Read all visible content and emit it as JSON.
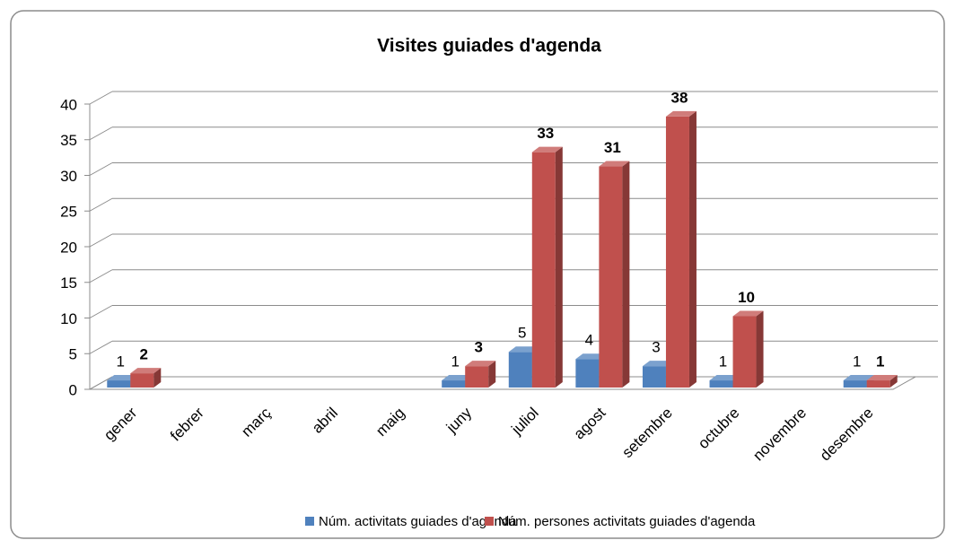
{
  "chart_data": {
    "type": "bar3d",
    "title": "Visites guiades d'agenda",
    "categories": [
      "gener",
      "febrer",
      "març",
      "abril",
      "maig",
      "juny",
      "juliol",
      "agost",
      "setembre",
      "octubre",
      "novembre",
      "desembre"
    ],
    "series": [
      {
        "name": "Núm. activitats guiades d'agenda",
        "color": "#4f81bd",
        "values": [
          1,
          null,
          null,
          null,
          null,
          1,
          5,
          4,
          3,
          1,
          null,
          1
        ]
      },
      {
        "name": "Núm. persones activitats guiades d'agenda",
        "color": "#c0504d",
        "values": [
          2,
          null,
          null,
          null,
          null,
          3,
          33,
          31,
          38,
          10,
          null,
          1
        ]
      }
    ],
    "ylim": [
      0,
      40
    ],
    "yticks": [
      0,
      5,
      10,
      15,
      20,
      25,
      30,
      35,
      40
    ],
    "grid": true,
    "legend": "bottom"
  }
}
